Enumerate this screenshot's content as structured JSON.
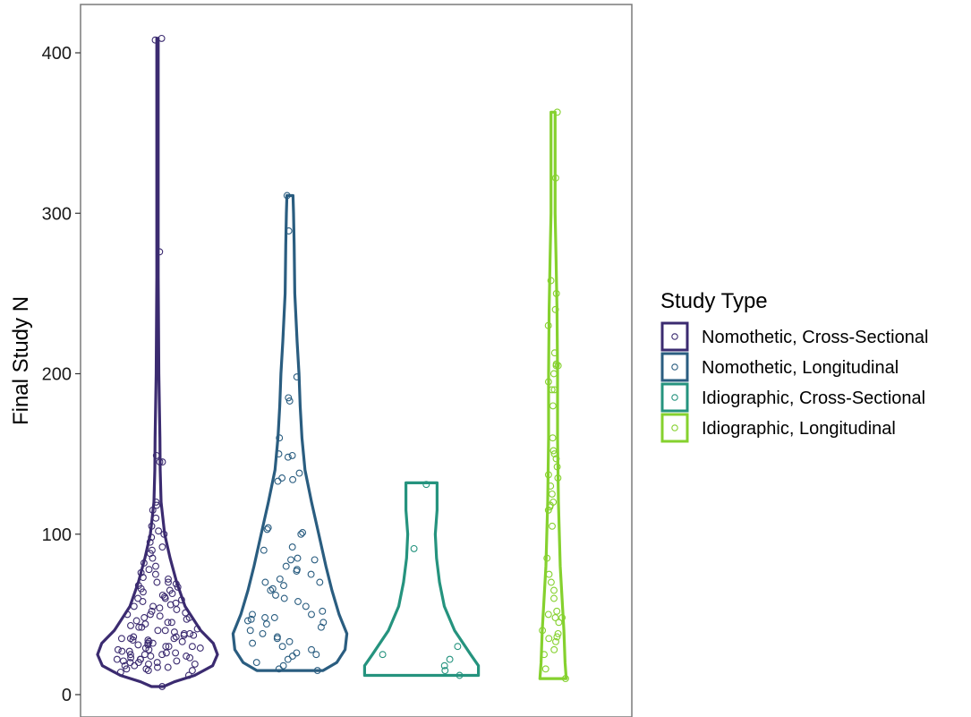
{
  "chart_data": {
    "type": "violin",
    "ylabel": "Final Study N",
    "xlabel": "",
    "ylim": [
      0,
      420
    ],
    "y_ticks": [
      0,
      100,
      200,
      300,
      400
    ],
    "grid": false,
    "legend": {
      "title": "Study Type",
      "placement": "right"
    },
    "series": [
      {
        "name": "Nomothetic, Cross-Sectional",
        "color": "#3b2b70",
        "profile": [
          [
            5,
            0.1
          ],
          [
            8,
            0.28
          ],
          [
            12,
            0.62
          ],
          [
            18,
            0.92
          ],
          [
            25,
            1.0
          ],
          [
            32,
            0.93
          ],
          [
            40,
            0.72
          ],
          [
            55,
            0.46
          ],
          [
            70,
            0.32
          ],
          [
            85,
            0.21
          ],
          [
            100,
            0.12
          ],
          [
            120,
            0.06
          ],
          [
            140,
            0.045
          ],
          [
            160,
            0.04
          ],
          [
            200,
            0.022
          ],
          [
            260,
            0.012
          ],
          [
            300,
            0.012
          ],
          [
            340,
            0.012
          ],
          [
            380,
            0.012
          ],
          [
            409,
            0.012
          ]
        ],
        "points": [
          5,
          12,
          14,
          15,
          15,
          16,
          16,
          17,
          17,
          18,
          18,
          19,
          19,
          20,
          20,
          20,
          21,
          21,
          22,
          22,
          22,
          23,
          23,
          24,
          24,
          25,
          25,
          25,
          26,
          26,
          27,
          27,
          28,
          28,
          29,
          29,
          30,
          30,
          30,
          31,
          31,
          32,
          32,
          33,
          33,
          34,
          34,
          35,
          35,
          35,
          36,
          36,
          37,
          37,
          38,
          38,
          39,
          40,
          40,
          41,
          42,
          42,
          43,
          44,
          45,
          45,
          46,
          47,
          48,
          48,
          49,
          50,
          50,
          51,
          52,
          53,
          54,
          55,
          55,
          56,
          57,
          58,
          59,
          60,
          60,
          61,
          62,
          63,
          64,
          65,
          66,
          67,
          68,
          69,
          70,
          70,
          72,
          73,
          75,
          76,
          78,
          80,
          82,
          85,
          88,
          90,
          92,
          95,
          98,
          100,
          102,
          105,
          110,
          115,
          118,
          120,
          145,
          145,
          149,
          276,
          408,
          409
        ]
      },
      {
        "name": "Nomothetic, Longitudinal",
        "color": "#2a5d80",
        "profile": [
          [
            15,
            0.55
          ],
          [
            20,
            0.78
          ],
          [
            28,
            0.92
          ],
          [
            38,
            0.95
          ],
          [
            50,
            0.82
          ],
          [
            65,
            0.7
          ],
          [
            80,
            0.6
          ],
          [
            100,
            0.48
          ],
          [
            120,
            0.36
          ],
          [
            140,
            0.25
          ],
          [
            160,
            0.2
          ],
          [
            180,
            0.17
          ],
          [
            200,
            0.15
          ],
          [
            220,
            0.12
          ],
          [
            250,
            0.08
          ],
          [
            280,
            0.07
          ],
          [
            300,
            0.06
          ],
          [
            311,
            0.05
          ]
        ],
        "points": [
          15,
          16,
          18,
          20,
          22,
          24,
          25,
          26,
          28,
          30,
          32,
          33,
          35,
          36,
          38,
          40,
          42,
          44,
          45,
          46,
          47,
          48,
          48,
          50,
          50,
          52,
          55,
          58,
          60,
          62,
          65,
          66,
          68,
          70,
          70,
          72,
          75,
          77,
          78,
          80,
          84,
          84,
          85,
          90,
          92,
          100,
          101,
          103,
          104,
          133,
          134,
          135,
          138,
          148,
          149,
          150,
          160,
          183,
          185,
          198,
          289,
          311
        ]
      },
      {
        "name": "Idiographic, Cross-Sectional",
        "color": "#25937e",
        "profile": [
          [
            12,
            0.95
          ],
          [
            18,
            0.95
          ],
          [
            25,
            0.82
          ],
          [
            40,
            0.55
          ],
          [
            55,
            0.38
          ],
          [
            70,
            0.3
          ],
          [
            85,
            0.25
          ],
          [
            100,
            0.23
          ],
          [
            115,
            0.26
          ],
          [
            132,
            0.26
          ]
        ],
        "points": [
          12,
          15,
          18,
          22,
          25,
          30,
          91,
          131
        ]
      },
      {
        "name": "Idiographic, Longitudinal",
        "color": "#85d12e",
        "profile": [
          [
            10,
            0.22
          ],
          [
            20,
            0.2
          ],
          [
            40,
            0.18
          ],
          [
            80,
            0.12
          ],
          [
            120,
            0.09
          ],
          [
            160,
            0.075
          ],
          [
            200,
            0.075
          ],
          [
            240,
            0.065
          ],
          [
            270,
            0.05
          ],
          [
            300,
            0.035
          ],
          [
            340,
            0.035
          ],
          [
            363,
            0.035
          ]
        ],
        "points": [
          10,
          16,
          25,
          28,
          33,
          35,
          36,
          38,
          40,
          45,
          48,
          48,
          50,
          52,
          60,
          65,
          70,
          75,
          85,
          105,
          115,
          117,
          118,
          120,
          125,
          130,
          135,
          137,
          142,
          147,
          150,
          152,
          160,
          180,
          190,
          190,
          195,
          200,
          205,
          205,
          206,
          213,
          230,
          240,
          250,
          258,
          322,
          363
        ]
      }
    ]
  }
}
